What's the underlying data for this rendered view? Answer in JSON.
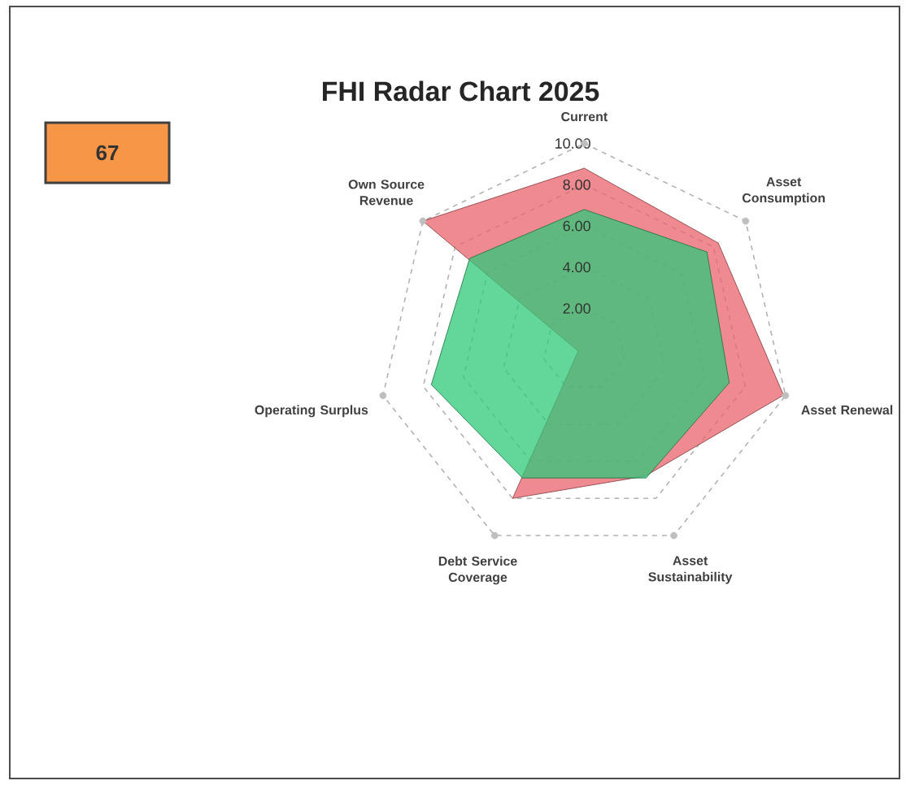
{
  "chart_data": {
    "type": "radar",
    "title": "FHI Radar Chart 2025",
    "categories": [
      "Current",
      "Asset Consumption",
      "Asset Renewal",
      "Asset Sustainability",
      "Debt Service Coverage",
      "Operating Surplus",
      "Own Source Revenue"
    ],
    "series": [
      {
        "color": "#e8636b",
        "values": [
          8.8,
          8.3,
          9.9,
          6.8,
          8.0,
          0.3,
          10.0
        ]
      },
      {
        "color": "#2fc878",
        "values": [
          6.8,
          7.6,
          7.2,
          6.9,
          6.9,
          7.6,
          7.1
        ]
      }
    ],
    "ylim": [
      0,
      10
    ],
    "yticks": [
      {
        "value": 2,
        "label": "2.00"
      },
      {
        "value": 4,
        "label": "4.00"
      },
      {
        "value": 6,
        "label": "6.00"
      },
      {
        "value": 8,
        "label": "8.00"
      },
      {
        "value": 10,
        "label": "10.00"
      }
    ],
    "grid": true,
    "annotations": [
      "67"
    ]
  }
}
